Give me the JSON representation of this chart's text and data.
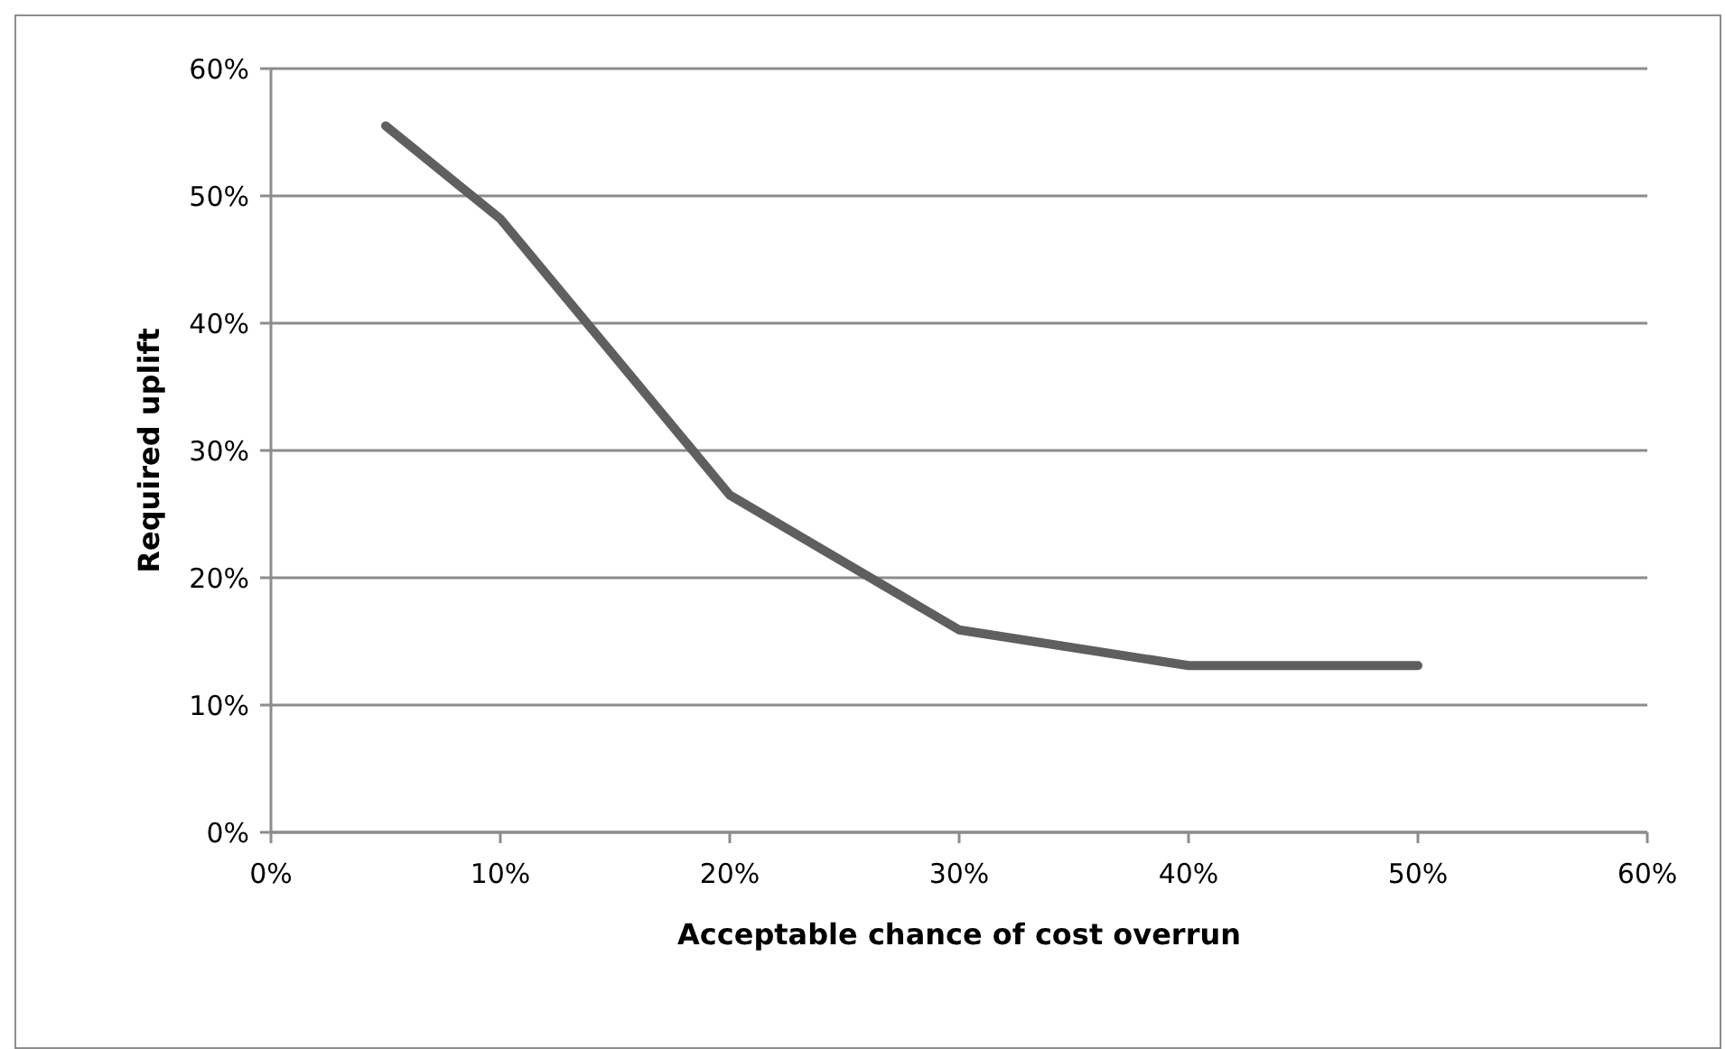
{
  "chart_data": {
    "type": "line",
    "xlabel": "Acceptable chance of cost overrun",
    "ylabel": "Required uplift",
    "x": [
      5,
      10,
      20,
      30,
      40,
      50
    ],
    "series": [
      {
        "color": "#5f5f5f",
        "values": [
          55.5,
          48.2,
          26.5,
          15.9,
          13.1,
          13.1
        ]
      }
    ],
    "xlim": [
      0,
      60
    ],
    "ylim": [
      0,
      60
    ],
    "xticks": [
      {
        "value": 0,
        "label": "0%"
      },
      {
        "value": 10,
        "label": "10%"
      },
      {
        "value": 20,
        "label": "20%"
      },
      {
        "value": 30,
        "label": "30%"
      },
      {
        "value": 40,
        "label": "40%"
      },
      {
        "value": 50,
        "label": "50%"
      },
      {
        "value": 60,
        "label": "60%"
      }
    ],
    "yticks": [
      {
        "value": 0,
        "label": "0%"
      },
      {
        "value": 10,
        "label": "10%"
      },
      {
        "value": 20,
        "label": "20%"
      },
      {
        "value": 30,
        "label": "30%"
      },
      {
        "value": 40,
        "label": "40%"
      },
      {
        "value": 50,
        "label": "50%"
      },
      {
        "value": 60,
        "label": "60%"
      }
    ],
    "grid": "y",
    "marker": "none",
    "line_style": "solid"
  }
}
